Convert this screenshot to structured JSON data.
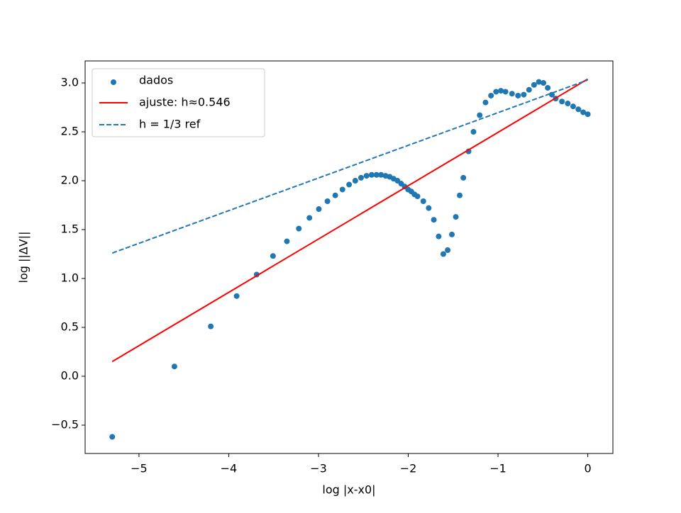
{
  "chart_data": {
    "type": "scatter",
    "xlabel": "log |x-x0|",
    "ylabel": "log ||ΔV||",
    "xlim": [
      -5.6,
      0.28
    ],
    "ylim": [
      -0.79,
      3.225
    ],
    "xticks": [
      {
        "value": -5,
        "label": "−5"
      },
      {
        "value": -4,
        "label": "−4"
      },
      {
        "value": -3,
        "label": "−3"
      },
      {
        "value": -2,
        "label": "−2"
      },
      {
        "value": -1,
        "label": "−1"
      },
      0
    ],
    "yticks": [
      {
        "value": -0.5,
        "label": "−0.5"
      },
      {
        "value": 0,
        "label": "0.0"
      },
      {
        "value": 0.5,
        "label": "0.5"
      },
      {
        "value": 1,
        "label": "1.0"
      },
      {
        "value": 1.5,
        "label": "1.5"
      },
      {
        "value": 2,
        "label": "2.0"
      },
      {
        "value": 2.5,
        "label": "2.5"
      },
      {
        "value": 3,
        "label": "3.0"
      }
    ],
    "legend": "upper left",
    "series": [
      {
        "name": "dados",
        "type": "scatter",
        "color": "#1f77b4",
        "x": [
          -5.298,
          -4.605,
          -4.2,
          -3.912,
          -3.689,
          -3.507,
          -3.352,
          -3.219,
          -3.101,
          -2.996,
          -2.9,
          -2.813,
          -2.733,
          -2.659,
          -2.59,
          -2.526,
          -2.465,
          -2.408,
          -2.354,
          -2.303,
          -2.253,
          -2.207,
          -2.163,
          -2.12,
          -2.079,
          -2.04,
          -2.002,
          -1.966,
          -1.931,
          -1.897,
          -1.832,
          -1.772,
          -1.715,
          -1.661,
          -1.609,
          -1.561,
          -1.514,
          -1.47,
          -1.427,
          -1.386,
          -1.328,
          -1.273,
          -1.204,
          -1.139,
          -1.078,
          -1.022,
          -0.968,
          -0.916,
          -0.844,
          -0.777,
          -0.713,
          -0.654,
          -0.598,
          -0.545,
          -0.494,
          -0.446,
          -0.4,
          -0.357,
          -0.288,
          -0.223,
          -0.163,
          -0.105,
          -0.051,
          0
        ],
        "values": [
          -0.62,
          0.1,
          0.51,
          0.82,
          1.04,
          1.23,
          1.38,
          1.51,
          1.62,
          1.71,
          1.79,
          1.85,
          1.91,
          1.96,
          2.0,
          2.03,
          2.05,
          2.06,
          2.06,
          2.06,
          2.05,
          2.04,
          2.02,
          2.0,
          1.97,
          1.94,
          1.91,
          1.89,
          1.86,
          1.84,
          1.79,
          1.72,
          1.6,
          1.43,
          1.25,
          1.29,
          1.45,
          1.63,
          1.85,
          2.03,
          2.3,
          2.5,
          2.67,
          2.8,
          2.87,
          2.91,
          2.92,
          2.91,
          2.89,
          2.87,
          2.88,
          2.93,
          2.98,
          3.01,
          3.0,
          2.95,
          2.88,
          2.84,
          2.81,
          2.79,
          2.76,
          2.73,
          2.7,
          2.68
        ]
      },
      {
        "name": "ajuste: h≈0.546",
        "type": "line",
        "color": "#ff0000",
        "x": [
          -5.298,
          0
        ],
        "values": [
          0.15,
          3.04
        ]
      },
      {
        "name": "h = 1/3 ref",
        "type": "line",
        "dash": true,
        "color": "#1f77b4",
        "x": [
          -5.298,
          0
        ],
        "values": [
          1.26,
          3.03
        ]
      }
    ]
  }
}
